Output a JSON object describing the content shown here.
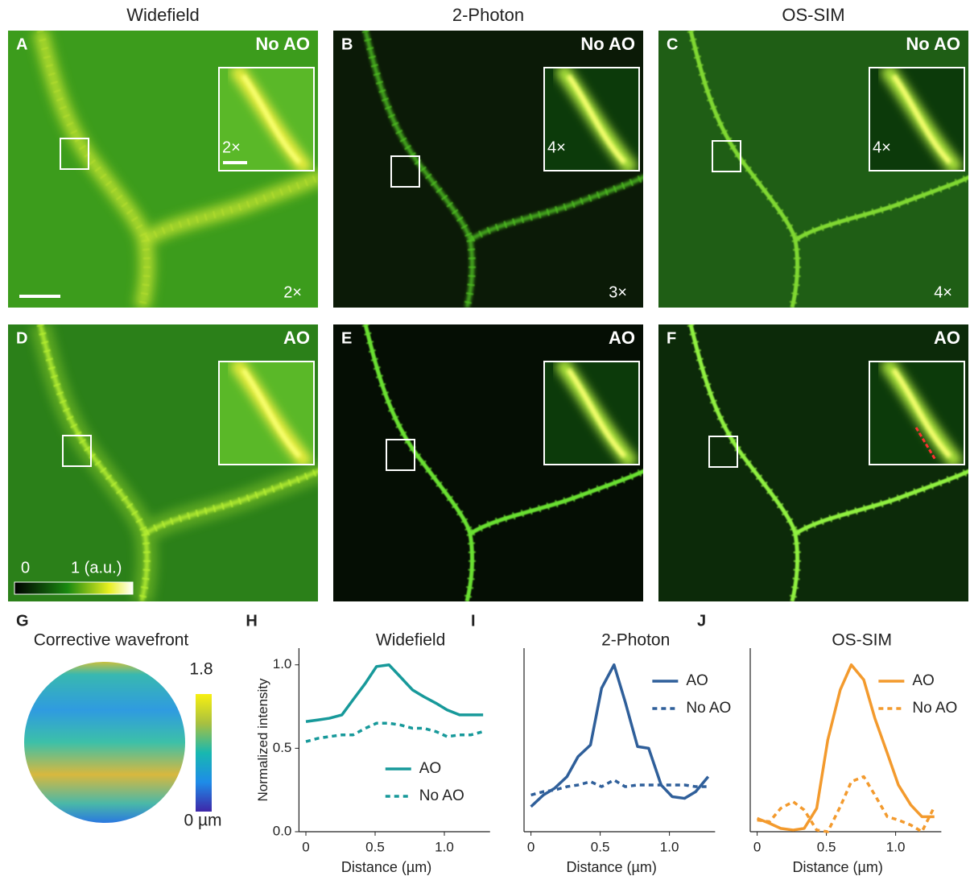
{
  "columns": [
    "Widefield",
    "2-Photon",
    "OS-SIM"
  ],
  "panels": [
    {
      "letter": "A",
      "condition": "No AO",
      "inset_zoom": "2×",
      "gain": "2×"
    },
    {
      "letter": "B",
      "condition": "No AO",
      "inset_zoom": "4×",
      "gain": "3×"
    },
    {
      "letter": "C",
      "condition": "No AO",
      "inset_zoom": "4×",
      "gain": "4×"
    },
    {
      "letter": "D",
      "condition": "AO"
    },
    {
      "letter": "E",
      "condition": "AO"
    },
    {
      "letter": "F",
      "condition": "AO"
    }
  ],
  "intensity_colorbar": {
    "min": "0",
    "max": "1 (a.u.)"
  },
  "wavefront": {
    "letter": "G",
    "title": "Corrective wavefront",
    "max": "1.8",
    "min": "0 µm"
  },
  "chart_data": [
    {
      "type": "line",
      "letter": "H",
      "title": "Widefield",
      "xlabel": "Distance (µm)",
      "ylabel": "Normalized intensity",
      "x": [
        0,
        0.09,
        0.17,
        0.26,
        0.34,
        0.43,
        0.51,
        0.6,
        0.68,
        0.77,
        0.85,
        0.94,
        1.02,
        1.11,
        1.19,
        1.28
      ],
      "series": [
        {
          "name": "AO",
          "color": "#17999a",
          "linestyle": "solid",
          "values": [
            0.66,
            0.67,
            0.68,
            0.7,
            0.79,
            0.89,
            0.99,
            1.0,
            0.93,
            0.85,
            0.81,
            0.77,
            0.73,
            0.7,
            0.7,
            0.7
          ]
        },
        {
          "name": "No AO",
          "color": "#17999a",
          "linestyle": "dashed",
          "values": [
            0.54,
            0.56,
            0.57,
            0.58,
            0.58,
            0.62,
            0.65,
            0.65,
            0.64,
            0.62,
            0.62,
            0.6,
            0.57,
            0.58,
            0.58,
            0.6
          ]
        }
      ],
      "xlim": [
        -0.05,
        1.33
      ],
      "ylim": [
        0,
        1.1
      ],
      "xticks": [
        0,
        0.5,
        {
          "value": 1,
          "label": "1.0"
        }
      ],
      "yticks": [
        {
          "value": 0,
          "label": "0.0"
        },
        0.5,
        {
          "value": 1,
          "label": "1.0"
        }
      ],
      "legend": "lower right"
    },
    {
      "type": "line",
      "letter": "I",
      "title": "2-Photon",
      "xlabel": "Distance (µm)",
      "x": [
        0,
        0.09,
        0.17,
        0.26,
        0.34,
        0.43,
        0.51,
        0.6,
        0.68,
        0.77,
        0.85,
        0.94,
        1.02,
        1.11,
        1.19,
        1.28
      ],
      "series": [
        {
          "name": "AO",
          "color": "#2f5f9a",
          "linestyle": "solid",
          "values": [
            0.15,
            0.22,
            0.26,
            0.33,
            0.45,
            0.52,
            0.86,
            1.0,
            0.78,
            0.51,
            0.5,
            0.28,
            0.21,
            0.2,
            0.24,
            0.33
          ]
        },
        {
          "name": "No AO",
          "color": "#2f5f9a",
          "linestyle": "dashed",
          "values": [
            0.22,
            0.24,
            0.25,
            0.27,
            0.28,
            0.3,
            0.27,
            0.31,
            0.27,
            0.28,
            0.28,
            0.28,
            0.28,
            0.28,
            0.27,
            0.27
          ]
        }
      ],
      "xlim": [
        -0.05,
        1.33
      ],
      "ylim": [
        0,
        1.1
      ],
      "xticks": [
        0,
        0.5,
        {
          "value": 1,
          "label": "1.0"
        }
      ],
      "legend": "upper right"
    },
    {
      "type": "line",
      "letter": "J",
      "title": "OS-SIM",
      "xlabel": "Distance (µm)",
      "x": [
        0,
        0.09,
        0.17,
        0.26,
        0.34,
        0.43,
        0.51,
        0.6,
        0.68,
        0.77,
        0.85,
        0.94,
        1.02,
        1.11,
        1.19,
        1.28
      ],
      "series": [
        {
          "name": "AO",
          "color": "#f39a2d",
          "linestyle": "solid",
          "values": [
            0.08,
            0.05,
            0.02,
            0.01,
            0.02,
            0.14,
            0.55,
            0.85,
            1.0,
            0.91,
            0.68,
            0.47,
            0.28,
            0.16,
            0.09,
            0.09
          ]
        },
        {
          "name": "No AO",
          "color": "#f39a2d",
          "linestyle": "dashed",
          "values": [
            0.07,
            0.06,
            0.14,
            0.18,
            0.13,
            0.01,
            0.0,
            0.15,
            0.3,
            0.33,
            0.22,
            0.09,
            0.07,
            0.04,
            0.0,
            0.15
          ]
        }
      ],
      "xlim": [
        -0.05,
        1.33
      ],
      "ylim": [
        0,
        1.1
      ],
      "xticks": [
        0,
        0.5,
        {
          "value": 1,
          "label": "1.0"
        }
      ],
      "legend": "upper right"
    }
  ]
}
